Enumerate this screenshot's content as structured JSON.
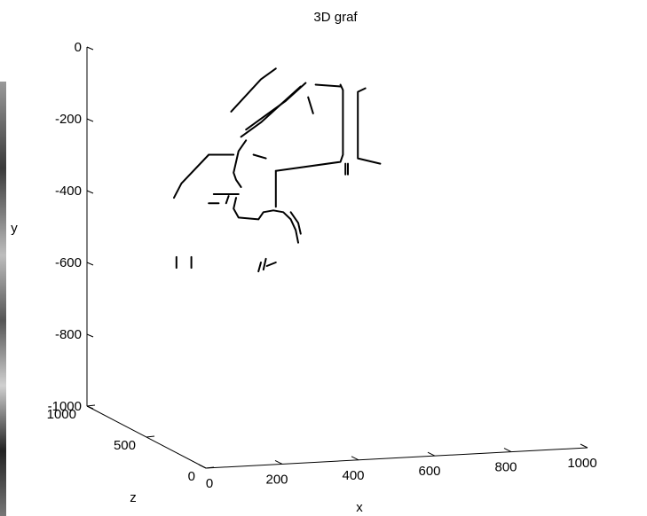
{
  "chart_data": {
    "type": "3d-line",
    "title": "3D graf",
    "xlabel": "x",
    "ylabel": "y",
    "zlabel": "z",
    "xlim": [
      0,
      1000
    ],
    "ylim": [
      -1000,
      0
    ],
    "zlim": [
      0,
      1000
    ],
    "x_ticks": [
      "0",
      "200",
      "400",
      "600",
      "800",
      "1000"
    ],
    "y_ticks": [
      "0",
      "-200",
      "-400",
      "-600",
      "-800",
      "-1000"
    ],
    "z_ticks": [
      "0",
      "500",
      "1000"
    ],
    "grid": false,
    "line_color": "#000000",
    "polylines": [
      [
        [
          380,
          -60
        ],
        [
          350,
          -90
        ],
        [
          290,
          -180
        ]
      ],
      [
        [
          510,
          -110
        ],
        [
          460,
          -105
        ]
      ],
      [
        [
          440,
          -100
        ],
        [
          400,
          -150
        ],
        [
          360,
          -190
        ],
        [
          320,
          -230
        ]
      ],
      [
        [
          430,
          -110
        ],
        [
          390,
          -160
        ],
        [
          350,
          -210
        ],
        [
          310,
          -250
        ]
      ],
      [
        [
          510,
          -105
        ],
        [
          515,
          -120
        ],
        [
          515,
          -300
        ],
        [
          510,
          -320
        ],
        [
          380,
          -345
        ]
      ],
      [
        [
          560,
          -115
        ],
        [
          545,
          -125
        ],
        [
          545,
          -310
        ],
        [
          590,
          -325
        ]
      ],
      [
        [
          245,
          -300
        ],
        [
          295,
          -300
        ]
      ],
      [
        [
          245,
          -300
        ],
        [
          190,
          -380
        ],
        [
          175,
          -420
        ]
      ],
      [
        [
          335,
          -300
        ],
        [
          360,
          -310
        ]
      ],
      [
        [
          320,
          -260
        ],
        [
          305,
          -290
        ],
        [
          300,
          -320
        ],
        [
          295,
          -350
        ],
        [
          300,
          -370
        ],
        [
          310,
          -390
        ]
      ],
      [
        [
          300,
          -420
        ],
        [
          295,
          -450
        ],
        [
          305,
          -475
        ],
        [
          345,
          -480
        ],
        [
          355,
          -460
        ],
        [
          375,
          -455
        ],
        [
          395,
          -460
        ],
        [
          410,
          -480
        ],
        [
          420,
          -510
        ],
        [
          425,
          -545
        ]
      ],
      [
        [
          410,
          -460
        ],
        [
          425,
          -490
        ],
        [
          430,
          -520
        ]
      ],
      [
        [
          380,
          -345
        ],
        [
          380,
          -445
        ]
      ],
      [
        [
          255,
          -410
        ],
        [
          305,
          -410
        ]
      ],
      [
        [
          245,
          -435
        ],
        [
          265,
          -435
        ]
      ],
      [
        [
          285,
          -415
        ],
        [
          280,
          -435
        ]
      ],
      [
        [
          445,
          -140
        ],
        [
          455,
          -185
        ]
      ],
      [
        [
          520,
          -325
        ],
        [
          520,
          -355
        ]
      ],
      [
        [
          525,
          -325
        ],
        [
          525,
          -355
        ]
      ],
      [
        [
          180,
          -585
        ],
        [
          180,
          -615
        ]
      ],
      [
        [
          210,
          -585
        ],
        [
          210,
          -615
        ]
      ],
      [
        [
          350,
          -600
        ],
        [
          345,
          -625
        ]
      ],
      [
        [
          360,
          -590
        ],
        [
          355,
          -620
        ]
      ],
      [
        [
          362,
          -610
        ],
        [
          380,
          -600
        ]
      ]
    ]
  }
}
